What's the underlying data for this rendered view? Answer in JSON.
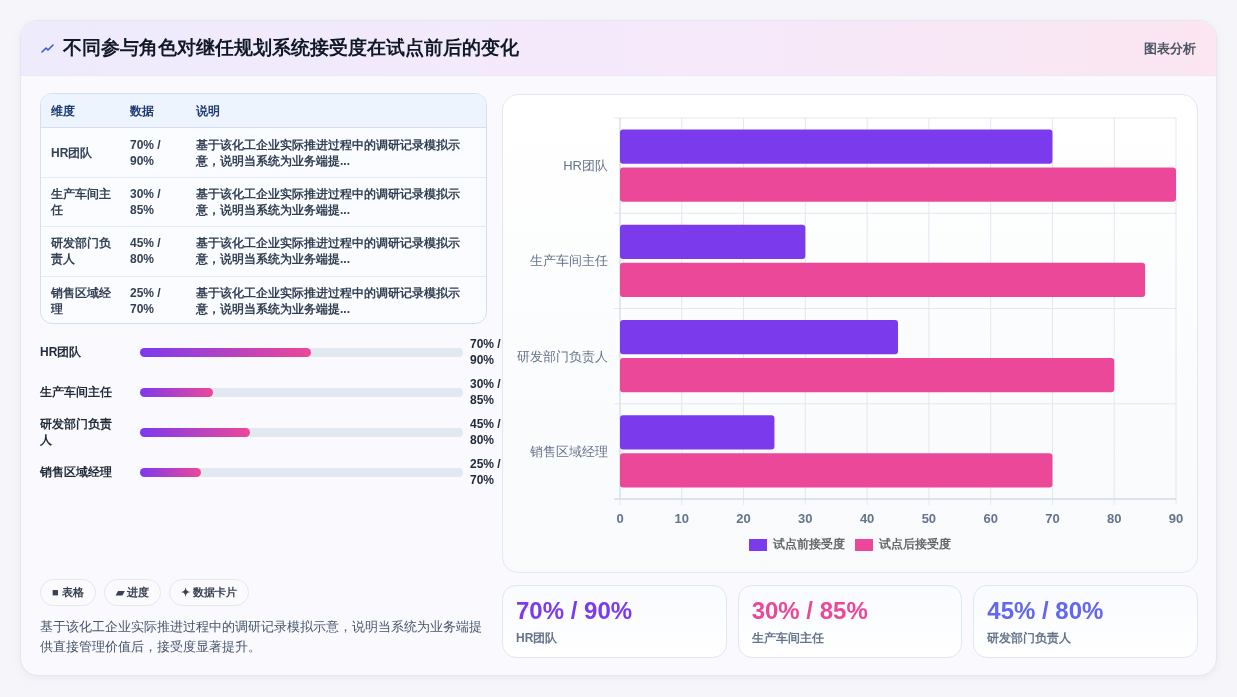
{
  "chart_data": [
    {
      "type": "other",
      "title": "不同参与角色对继任规划系统接受度在试点前后的变化",
      "annotations": [
        "图表分析"
      ]
    },
    {
      "type": "other",
      "categories": [
        "HR团队",
        "生产车间主任",
        "研发部门负责人",
        "销售区域经理"
      ],
      "value_labels": [
        "70% / 90%",
        "30% / 85%",
        "45% / 80%",
        "25% / 70%"
      ],
      "annotations": [
        "维度",
        "数据",
        "说明",
        "基于该化工企业实际推进过程中的调研记录模拟示意，说明当系统为业务端提...",
        "基于该化工企业实际推进过程中的调研记录模拟示意，说明当系统为业务端提...",
        "基于该化工企业实际推进过程中的调研记录模拟示意，说明当系统为业务端提...",
        "基于该化工企业实际推进过程中的调研记录模拟示意，说明当系统为业务端提..."
      ]
    },
    {
      "type": "bar",
      "orientation": "horizontal",
      "categories": [
        "HR团队",
        "生产车间主任",
        "研发部门负责人",
        "销售区域经理"
      ],
      "values": [
        70,
        30,
        45,
        25
      ],
      "value_labels": [
        "70% / 90%",
        "30% / 85%",
        "45% / 80%",
        "25% / 70%"
      ]
    },
    {
      "type": "other",
      "categories": [
        "■ 表格",
        "▰ 进度",
        "✦ 数据卡片"
      ],
      "annotations": [
        "基于该化工企业实际推进过程中的调研记录模拟示意，说明当系统为业务端提供直接管理价值后，接受度显著提升。"
      ]
    },
    {
      "type": "bar",
      "orientation": "horizontal",
      "categories": [
        "HR团队",
        "生产车间主任",
        "研发部门负责人",
        "销售区域经理"
      ],
      "series": [
        {
          "name": "试点前接受度",
          "color": "#7c3aed",
          "values": [
            70,
            30,
            45,
            25
          ]
        },
        {
          "name": "试点后接受度",
          "color": "#ec4899",
          "values": [
            90,
            85,
            80,
            70
          ]
        }
      ],
      "xlim": [
        0,
        90
      ],
      "xticks": [
        0,
        10,
        20,
        30,
        40,
        50,
        60,
        70,
        80,
        90
      ],
      "grid": true,
      "legend": "bottom"
    },
    {
      "type": "other",
      "categories": [
        "HR团队",
        "生产车间主任",
        "研发部门负责人"
      ],
      "value_labels": [
        "70% / 90%",
        "30% / 85%",
        "45% / 80%"
      ]
    }
  ]
}
